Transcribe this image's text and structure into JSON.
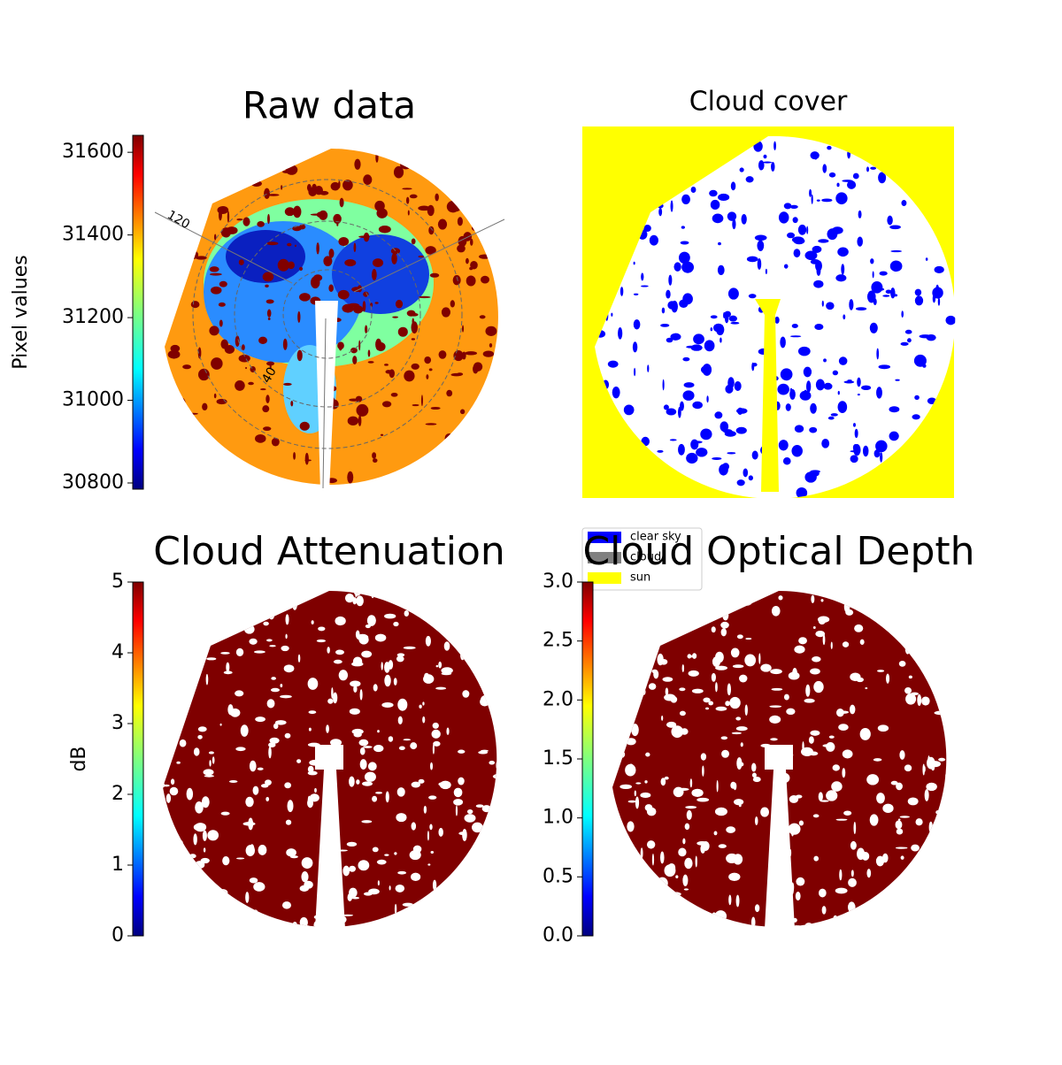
{
  "chart_data": [
    {
      "type": "image",
      "title": "Raw data",
      "ylabel": "Pixel values",
      "ylim": [
        30785,
        31641
      ],
      "yticks": [
        30800,
        31000,
        31200,
        31400,
        31600
      ],
      "annotations": [
        "120",
        "40"
      ]
    },
    {
      "type": "image",
      "title": "Cloud cover",
      "series": [
        {
          "name": "clear sky",
          "color": "#0000ff"
        },
        {
          "name": "cloud",
          "color": "#808080"
        },
        {
          "name": "sun",
          "color": "#ffff00"
        }
      ]
    },
    {
      "type": "image",
      "title": "Cloud Attenuation",
      "ylabel": "dB",
      "ylim": [
        0,
        5
      ],
      "yticks": [
        0,
        1,
        2,
        3,
        4,
        5
      ]
    },
    {
      "type": "image",
      "title": "Cloud Optical Depth",
      "ylim": [
        0,
        3
      ],
      "yticks": [
        {
          "value": 0,
          "label": "0.0"
        },
        {
          "value": 0.5,
          "label": "0.5"
        },
        {
          "value": 1,
          "label": "1.0"
        },
        {
          "value": 1.5,
          "label": "1.5"
        },
        {
          "value": 2,
          "label": "2.0"
        },
        {
          "value": 2.5,
          "label": "2.5"
        },
        {
          "value": 3,
          "label": "3.0"
        }
      ]
    }
  ]
}
